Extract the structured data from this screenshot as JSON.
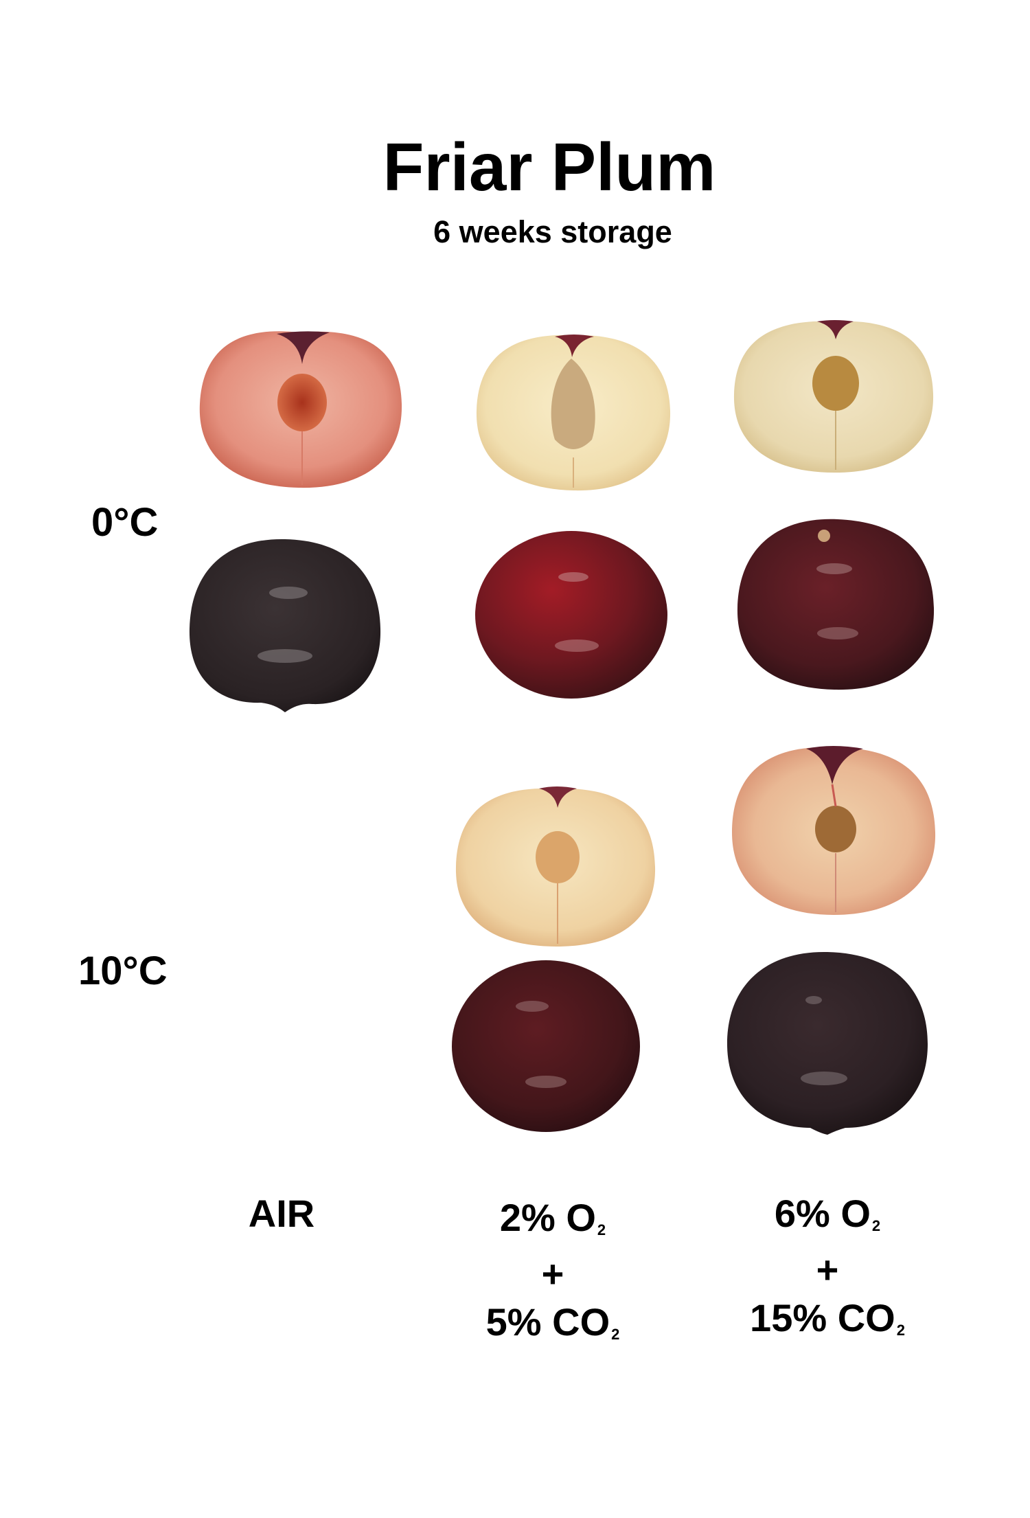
{
  "title": "Friar Plum",
  "subtitle": "6 weeks storage",
  "rows": [
    {
      "label": "0°C"
    },
    {
      "label": "10°C"
    }
  ],
  "columns": [
    {
      "label": "AIR"
    },
    {
      "line1": "2% O",
      "sub1": "2",
      "line2": "+",
      "line3": "5% CO",
      "sub3": "2"
    },
    {
      "line1": "6% O",
      "sub1": "2",
      "line2": "+",
      "line3": "15% CO",
      "sub3": "2"
    }
  ],
  "samples": [
    {
      "temperature": "0°C",
      "atmosphere": "AIR",
      "views": [
        "cut-half",
        "whole"
      ],
      "flesh_color": "#e8998a",
      "skin_color": "#2e2628"
    },
    {
      "temperature": "0°C",
      "atmosphere": "2% O2 + 5% CO2",
      "views": [
        "cut-half",
        "whole"
      ],
      "flesh_color": "#f3e3bc",
      "skin_color": "#7a1a22"
    },
    {
      "temperature": "0°C",
      "atmosphere": "6% O2 + 15% CO2",
      "views": [
        "cut-half",
        "whole"
      ],
      "flesh_color": "#ecdfbd",
      "skin_color": "#4e1a22"
    },
    {
      "temperature": "10°C",
      "atmosphere": "2% O2 + 5% CO2",
      "views": [
        "cut-half",
        "whole"
      ],
      "flesh_color": "#f1d9b0",
      "skin_color": "#4a1a1e"
    },
    {
      "temperature": "10°C",
      "atmosphere": "6% O2 + 15% CO2",
      "views": [
        "cut-half",
        "whole"
      ],
      "flesh_color": "#edc8a6",
      "skin_color": "#2e2226"
    }
  ],
  "colors": {
    "background": "#ffffff",
    "text": "#000000"
  }
}
